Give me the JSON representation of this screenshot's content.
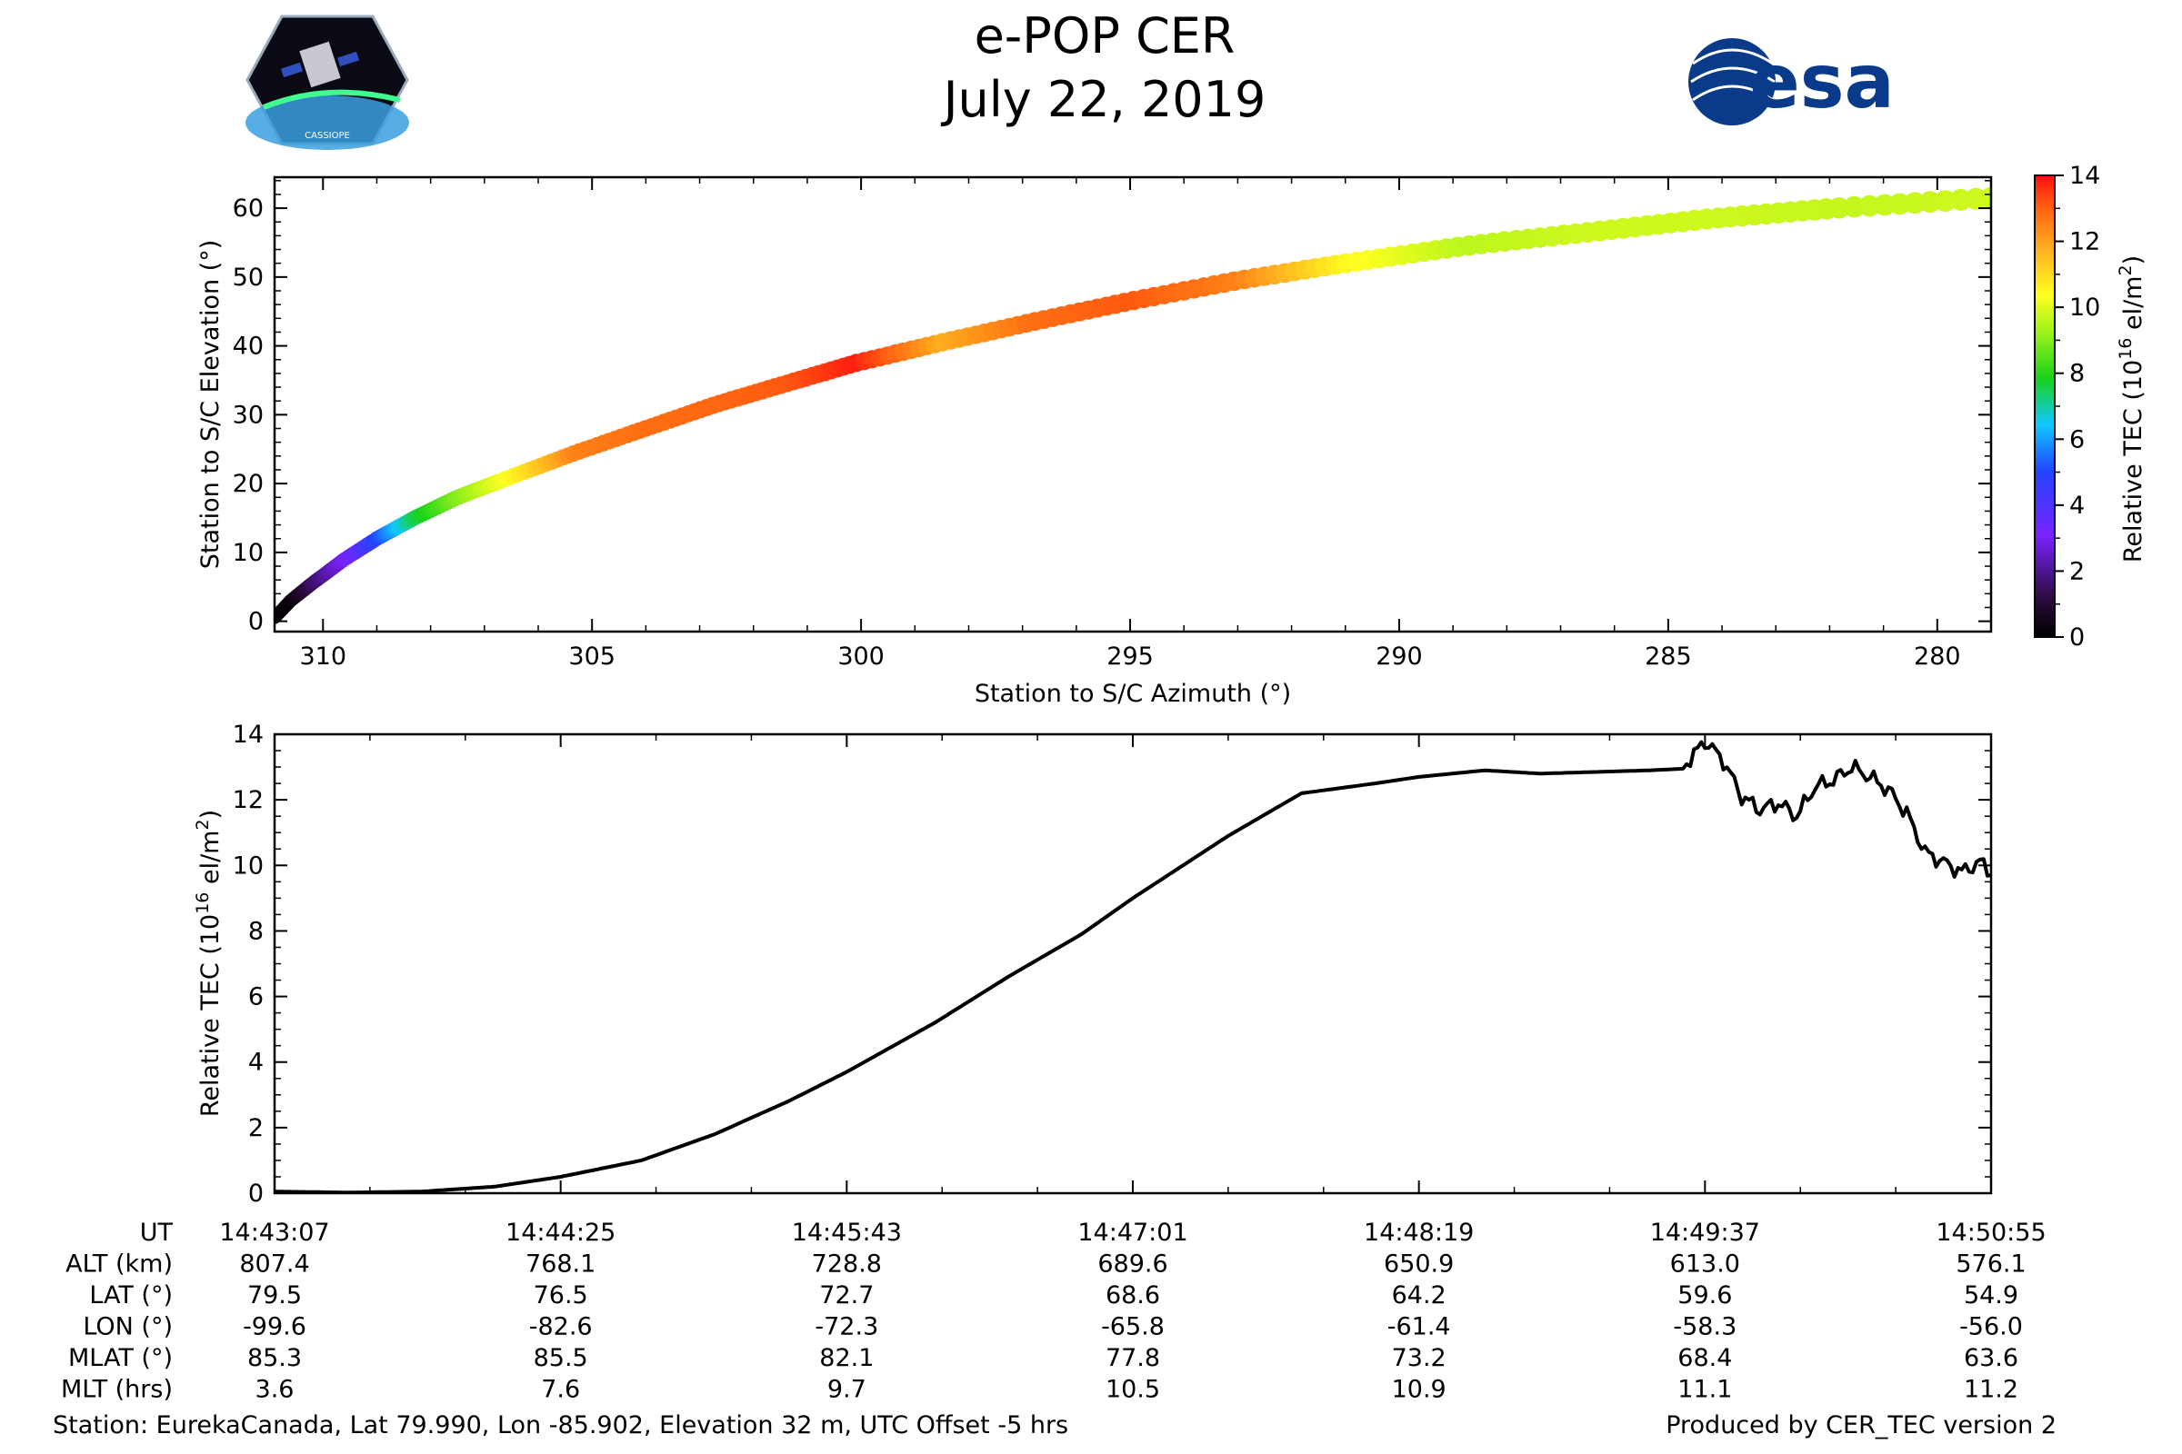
{
  "header": {
    "title": "e-POP CER",
    "date": "July 22, 2019",
    "logo_left": "CASSIOPE",
    "logo_right": "esa"
  },
  "colors": {
    "line": "#000000",
    "colormap": [
      "#000000",
      "#2a0a3a",
      "#7a22ff",
      "#2244ff",
      "#10c8ff",
      "#19d21a",
      "#9cf21a",
      "#ffff20",
      "#ffb020",
      "#ff6010",
      "#ff1010"
    ]
  },
  "chart_data": [
    {
      "type": "scatter",
      "title": "",
      "xlabel": "Station to S/C Azimuth (°)",
      "ylabel": "Station to S/C Elevation (°)",
      "xlim": [
        310.9,
        279.0
      ],
      "ylim": [
        -1.5,
        64.5
      ],
      "xticks": [
        310,
        305,
        300,
        295,
        290,
        285,
        280
      ],
      "yticks": [
        0,
        10,
        20,
        30,
        40,
        50,
        60
      ],
      "colorbar": {
        "label": "Relative TEC (10^16 el/m^2)",
        "range": [
          0,
          14
        ],
        "ticks": [
          0,
          2,
          4,
          6,
          8,
          10,
          12,
          14
        ]
      },
      "track": {
        "description_points": "azimuth, elevation, TEC color along pass",
        "azimuth": [
          310.9,
          310.6,
          310.2,
          309.6,
          309.0,
          308.3,
          307.5,
          306.5,
          305.3,
          304.0,
          302.7,
          301.4,
          300.1,
          298.5,
          296.8,
          295.0,
          293.0,
          291.0,
          288.8,
          286.5,
          284.2,
          281.9,
          279.0
        ],
        "elevation": [
          0.5,
          3.0,
          5.5,
          9.0,
          12.0,
          15.0,
          18.0,
          21.0,
          24.5,
          28.0,
          31.5,
          34.5,
          37.5,
          40.5,
          43.5,
          46.5,
          49.5,
          52.0,
          54.5,
          56.5,
          58.5,
          60.0,
          61.5
        ],
        "tec": [
          0.05,
          0.2,
          1.5,
          3.0,
          5.0,
          7.5,
          9.0,
          10.5,
          12.5,
          12.8,
          12.9,
          13.1,
          13.8,
          11.8,
          12.8,
          13.1,
          12.5,
          10.5,
          9.6,
          9.8,
          9.8,
          9.7,
          9.8
        ]
      }
    },
    {
      "type": "line",
      "title": "",
      "xlabel": "",
      "ylabel": "Relative TEC (10^16 el/m^2)",
      "xlim": [
        0,
        468
      ],
      "ylim": [
        0,
        14
      ],
      "yticks": [
        0,
        2,
        4,
        6,
        8,
        10,
        12,
        14
      ],
      "x_seconds": [
        0,
        20,
        40,
        60,
        78,
        100,
        120,
        140,
        156,
        180,
        200,
        220,
        234,
        260,
        280,
        300,
        312,
        330,
        345,
        360,
        375,
        384,
        390,
        395,
        400,
        405,
        410,
        415,
        420,
        425,
        430,
        435,
        440,
        445,
        450,
        455,
        460,
        465,
        468
      ],
      "tec": [
        0.05,
        0.02,
        0.05,
        0.2,
        0.5,
        1.0,
        1.8,
        2.8,
        3.7,
        5.2,
        6.6,
        7.9,
        9.0,
        10.9,
        12.2,
        12.5,
        12.7,
        12.9,
        12.8,
        12.85,
        12.9,
        12.95,
        13.8,
        13.2,
        12.1,
        11.7,
        11.9,
        11.5,
        12.4,
        12.6,
        13.0,
        12.7,
        12.3,
        11.6,
        10.4,
        10.1,
        9.8,
        10.1,
        9.8
      ]
    }
  ],
  "ut_table": {
    "rows": [
      {
        "label": "UT",
        "values": [
          "14:43:07",
          "14:44:25",
          "14:45:43",
          "14:47:01",
          "14:48:19",
          "14:49:37",
          "14:50:55"
        ]
      },
      {
        "label": "ALT (km)",
        "values": [
          "807.4",
          "768.1",
          "728.8",
          "689.6",
          "650.9",
          "613.0",
          "576.1"
        ]
      },
      {
        "label": "LAT (°)",
        "values": [
          "79.5",
          "76.5",
          "72.7",
          "68.6",
          "64.2",
          "59.6",
          "54.9"
        ]
      },
      {
        "label": "LON (°)",
        "values": [
          "-99.6",
          "-82.6",
          "-72.3",
          "-65.8",
          "-61.4",
          "-58.3",
          "-56.0"
        ]
      },
      {
        "label": "MLAT (°)",
        "values": [
          "85.3",
          "85.5",
          "82.1",
          "77.8",
          "73.2",
          "68.4",
          "63.6"
        ]
      },
      {
        "label": "MLT (hrs)",
        "values": [
          "3.6",
          "7.6",
          "9.7",
          "10.5",
          "10.9",
          "11.1",
          "11.2"
        ]
      }
    ]
  },
  "footer": {
    "station": "Station: EurekaCanada, Lat 79.990, Lon -85.902, Elevation 32 m, UTC Offset -5 hrs",
    "produced_by": "Produced by CER_TEC version 2"
  }
}
